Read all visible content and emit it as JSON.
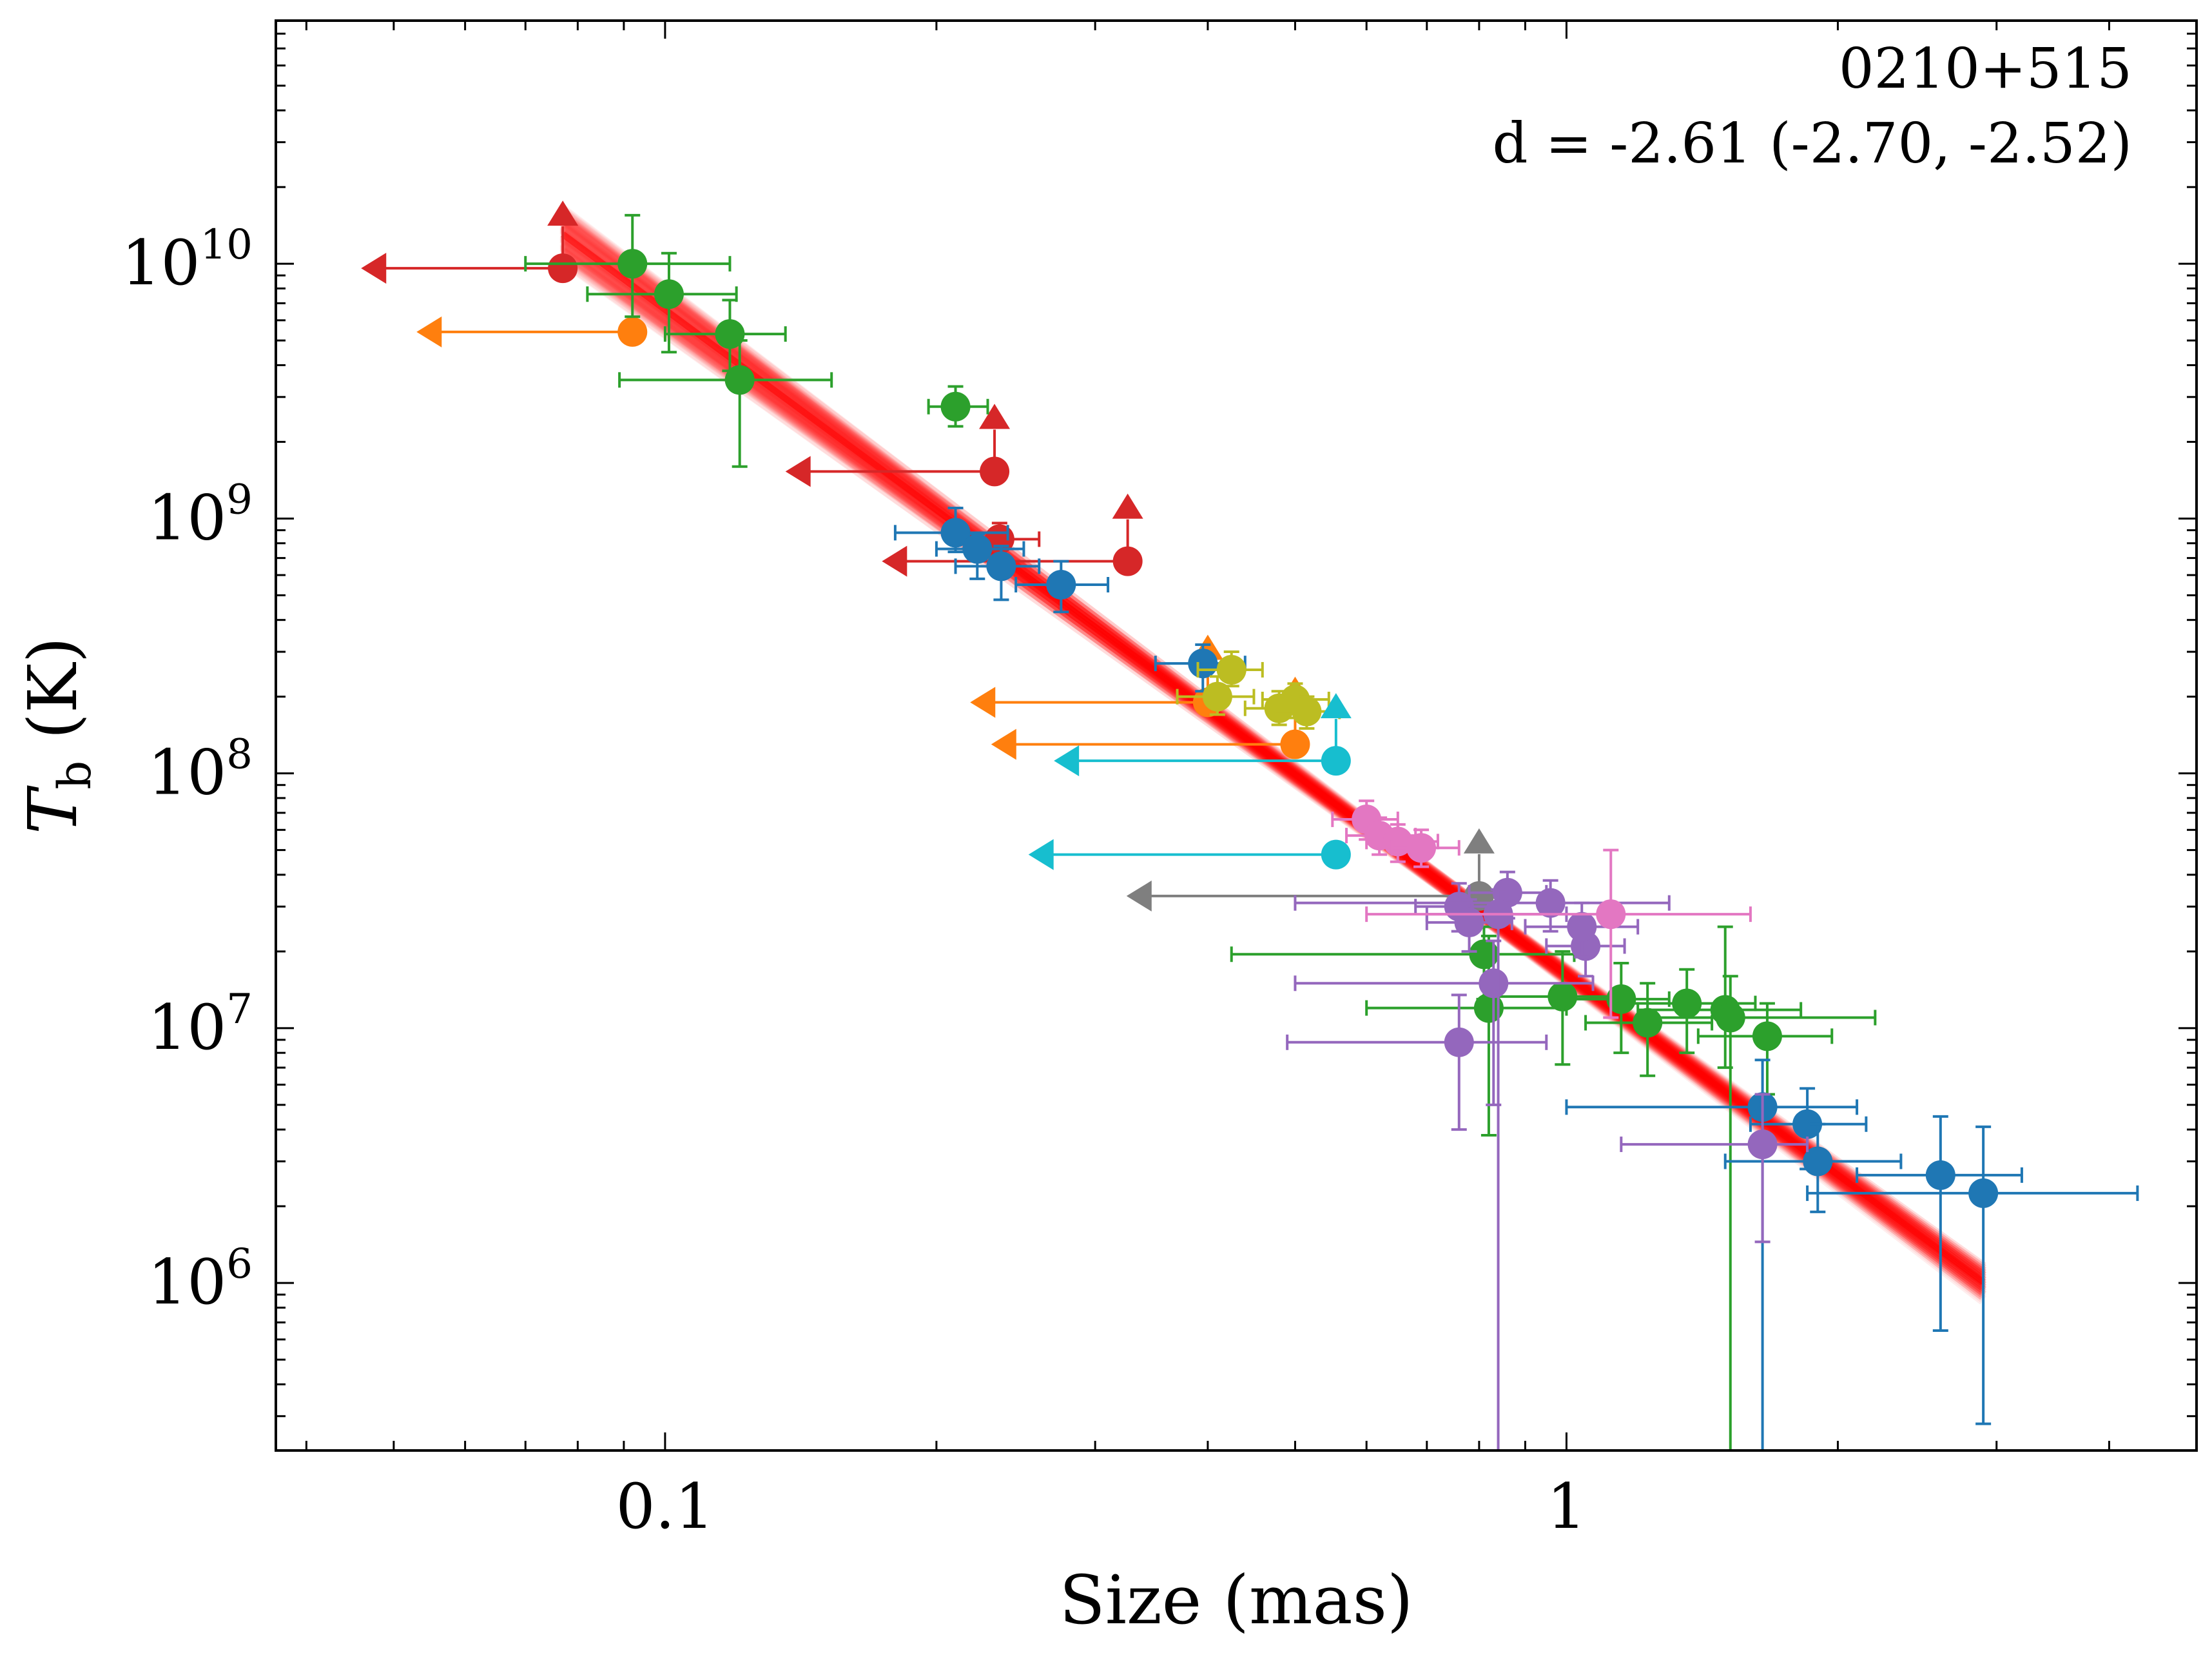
{
  "chart_data": {
    "type": "scatter",
    "xlabel": "Size (mas)",
    "ylabel": "T_b (K)",
    "xscale": "log",
    "yscale": "log",
    "xlim": [
      0.037,
      5.0
    ],
    "ylim": [
      220000,
      90000000000
    ],
    "x_ticks": [
      {
        "value": 0.1,
        "label": "0.1"
      },
      {
        "value": 1,
        "label": "1"
      }
    ],
    "y_ticks": [
      {
        "value": 1000000,
        "base": "10",
        "exp": "6"
      },
      {
        "value": 10000000,
        "base": "10",
        "exp": "7"
      },
      {
        "value": 100000000,
        "base": "10",
        "exp": "8"
      },
      {
        "value": 1000000000,
        "base": "10",
        "exp": "9"
      },
      {
        "value": 10000000000,
        "base": "10",
        "exp": "10"
      }
    ],
    "annotation": {
      "source": "0210+515",
      "fit": "d = -2.61 (-2.70, -2.52)"
    },
    "fit": {
      "slope": -2.61,
      "slope_low": -2.7,
      "slope_high": -2.52,
      "x0": 0.78,
      "y0": 31000000,
      "x_range": [
        0.077,
        2.9
      ],
      "color": "#ff0000"
    },
    "colors": {
      "red": "#d62728",
      "orange": "#ff7f0e",
      "green": "#2ca02c",
      "blue": "#1f77b4",
      "olive": "#bcbd22",
      "cyan": "#17becf",
      "gray": "#7f7f7f",
      "purple": "#9467bd",
      "pink": "#e377c2"
    },
    "series": [
      {
        "name": "red",
        "color": "#d62728",
        "points": [
          {
            "x": 0.077,
            "y": 9600000000,
            "xlo": 0.046,
            "upper_x": true,
            "lower_y": true
          },
          {
            "x": 0.232,
            "y": 1530000000,
            "xlo": 0.136,
            "upper_x": true,
            "lower_y": true
          },
          {
            "x": 0.326,
            "y": 680000000,
            "xlo": 0.174,
            "upper_x": true,
            "lower_y": true
          },
          {
            "x": 0.235,
            "y": 830000000,
            "xlo": 0.21,
            "xhi": 0.26,
            "ylo": 720000000,
            "yhi": 960000000
          }
        ]
      },
      {
        "name": "orange",
        "color": "#ff7f0e",
        "points": [
          {
            "x": 0.092,
            "y": 5400000000,
            "xlo": 0.053,
            "upper_x": true
          },
          {
            "x": 0.4,
            "y": 190000000,
            "xlo": 0.218,
            "upper_x": true,
            "lower_y": true
          },
          {
            "x": 0.5,
            "y": 130000000,
            "xlo": 0.23,
            "upper_x": true,
            "lower_y": true
          }
        ]
      },
      {
        "name": "green",
        "color": "#2ca02c",
        "points": [
          {
            "x": 0.092,
            "y": 10000000000,
            "xlo": 0.07,
            "xhi": 0.118,
            "ylo": 6200000000,
            "yhi": 15500000000
          },
          {
            "x": 0.101,
            "y": 7600000000,
            "xlo": 0.082,
            "xhi": 0.12,
            "ylo": 4500000000,
            "yhi": 11000000000
          },
          {
            "x": 0.118,
            "y": 5300000000,
            "xlo": 0.1,
            "xhi": 0.136,
            "ylo": 3800000000,
            "yhi": 7200000000
          },
          {
            "x": 0.121,
            "y": 3500000000,
            "xlo": 0.089,
            "xhi": 0.153,
            "ylo": 1600000000,
            "yhi": 5000000000
          },
          {
            "x": 0.21,
            "y": 2750000000,
            "xlo": 0.196,
            "xhi": 0.228,
            "ylo": 2300000000,
            "yhi": 3300000000
          },
          {
            "x": 0.81,
            "y": 19500000,
            "xlo": 0.425,
            "xhi": 1.02,
            "ylo": 13000000,
            "yhi": 25000000
          },
          {
            "x": 0.82,
            "y": 12000000,
            "xlo": 0.6,
            "xhi": 1.0,
            "ylo": 3800000,
            "yhi": 23000000
          },
          {
            "x": 0.99,
            "y": 13300000,
            "xlo": 0.84,
            "xhi": 1.16,
            "ylo": 7200000,
            "yhi": 20000000
          },
          {
            "x": 1.15,
            "y": 13000000,
            "xlo": 1.0,
            "xhi": 1.3,
            "ylo": 8000000,
            "yhi": 18000000
          },
          {
            "x": 1.23,
            "y": 10500000,
            "xlo": 1.05,
            "xhi": 1.45,
            "ylo": 6500000,
            "yhi": 15000000
          },
          {
            "x": 1.36,
            "y": 12500000,
            "xlo": 1.15,
            "xhi": 1.62,
            "ylo": 8000000,
            "yhi": 17000000
          },
          {
            "x": 1.5,
            "y": 11800000,
            "xlo": 1.2,
            "xhi": 1.82,
            "ylo": 7000000,
            "yhi": 25000000
          },
          {
            "x": 1.52,
            "y": 11000000,
            "xlo": 1.25,
            "xhi": 2.2,
            "ylo": 200000,
            "yhi": 16000000
          },
          {
            "x": 1.67,
            "y": 9300000,
            "xlo": 1.4,
            "xhi": 1.97,
            "ylo": 5500000,
            "yhi": 12500000
          }
        ]
      },
      {
        "name": "blue",
        "color": "#1f77b4",
        "points": [
          {
            "x": 0.21,
            "y": 880000000,
            "xlo": 0.18,
            "xhi": 0.24,
            "ylo": 740000000,
            "yhi": 1100000000
          },
          {
            "x": 0.222,
            "y": 760000000,
            "xlo": 0.2,
            "xhi": 0.25,
            "ylo": 580000000,
            "yhi": 870000000
          },
          {
            "x": 0.236,
            "y": 650000000,
            "xlo": 0.21,
            "xhi": 0.26,
            "ylo": 480000000,
            "yhi": 780000000
          },
          {
            "x": 0.275,
            "y": 550000000,
            "xlo": 0.245,
            "xhi": 0.31,
            "ylo": 430000000,
            "yhi": 680000000
          },
          {
            "x": 0.395,
            "y": 270000000,
            "xlo": 0.35,
            "xhi": 0.44,
            "ylo": 210000000,
            "yhi": 320000000
          },
          {
            "x": 1.65,
            "y": 4900000,
            "xlo": 1.0,
            "xhi": 2.1,
            "ylo": 200000,
            "yhi": 7500000
          },
          {
            "x": 1.85,
            "y": 4200000,
            "xlo": 1.6,
            "xhi": 2.15,
            "ylo": 2800000,
            "yhi": 5800000
          },
          {
            "x": 1.9,
            "y": 3000000,
            "xlo": 1.5,
            "xhi": 2.35,
            "ylo": 1900000,
            "yhi": 4200000
          },
          {
            "x": 2.6,
            "y": 2650000,
            "xlo": 2.1,
            "xhi": 3.2,
            "ylo": 650000,
            "yhi": 4500000
          },
          {
            "x": 2.9,
            "y": 2250000,
            "xlo": 1.85,
            "xhi": 4.3,
            "ylo": 280000,
            "yhi": 4100000
          }
        ]
      },
      {
        "name": "olive",
        "color": "#bcbd22",
        "points": [
          {
            "x": 0.41,
            "y": 200000000,
            "xlo": 0.37,
            "xhi": 0.45,
            "ylo": 170000000,
            "yhi": 240000000
          },
          {
            "x": 0.425,
            "y": 255000000,
            "xlo": 0.39,
            "xhi": 0.46,
            "ylo": 220000000,
            "yhi": 300000000
          },
          {
            "x": 0.48,
            "y": 180000000,
            "xlo": 0.44,
            "xhi": 0.52,
            "ylo": 155000000,
            "yhi": 210000000
          },
          {
            "x": 0.5,
            "y": 195000000,
            "xlo": 0.46,
            "xhi": 0.545,
            "ylo": 165000000,
            "yhi": 225000000
          },
          {
            "x": 0.515,
            "y": 175000000,
            "xlo": 0.475,
            "xhi": 0.56,
            "ylo": 150000000,
            "yhi": 200000000
          }
        ]
      },
      {
        "name": "cyan",
        "color": "#17becf",
        "points": [
          {
            "x": 0.555,
            "y": 112000000,
            "xlo": 0.27,
            "upper_x": true,
            "lower_y": true
          },
          {
            "x": 0.555,
            "y": 48000000,
            "xlo": 0.253,
            "upper_x": true
          }
        ]
      },
      {
        "name": "gray",
        "color": "#7f7f7f",
        "points": [
          {
            "x": 0.8,
            "y": 33000000,
            "xlo": 0.325,
            "upper_x": true,
            "lower_y": true
          }
        ]
      },
      {
        "name": "purple",
        "color": "#9467bd",
        "points": [
          {
            "x": 0.76,
            "y": 30000000,
            "xlo": 0.68,
            "xhi": 0.85,
            "ylo": 24000000,
            "yhi": 37000000
          },
          {
            "x": 0.78,
            "y": 26000000,
            "xlo": 0.7,
            "xhi": 0.87,
            "ylo": 20000000,
            "yhi": 32000000
          },
          {
            "x": 0.86,
            "y": 34000000,
            "xlo": 0.78,
            "xhi": 0.95,
            "ylo": 27000000,
            "yhi": 41000000
          },
          {
            "x": 0.96,
            "y": 31000000,
            "xlo": 0.5,
            "xhi": 1.3,
            "ylo": 24000000,
            "yhi": 38000000
          },
          {
            "x": 1.05,
            "y": 21000000,
            "xlo": 0.95,
            "xhi": 1.16,
            "ylo": 16000000,
            "yhi": 26000000
          },
          {
            "x": 1.04,
            "y": 25000000,
            "xlo": 0.9,
            "xhi": 1.2,
            "ylo": 19000000,
            "yhi": 31000000
          },
          {
            "x": 0.83,
            "y": 15000000,
            "xlo": 0.5,
            "xhi": 1.07,
            "ylo": 5000000,
            "yhi": 22000000
          },
          {
            "x": 0.84,
            "y": 28000000,
            "xlo": 0.7,
            "xhi": 1.0,
            "ylo": 200000,
            "yhi": 35000000
          },
          {
            "x": 0.76,
            "y": 8800000,
            "xlo": 0.49,
            "xhi": 0.95,
            "ylo": 4000000,
            "yhi": 13500000
          },
          {
            "x": 1.65,
            "y": 3500000,
            "xlo": 1.15,
            "xhi": 1.85,
            "ylo": 1450000,
            "yhi": 5500000
          }
        ]
      },
      {
        "name": "pink",
        "color": "#e377c2",
        "points": [
          {
            "x": 0.6,
            "y": 66000000,
            "xlo": 0.55,
            "xhi": 0.65,
            "ylo": 55000000,
            "yhi": 78000000
          },
          {
            "x": 0.62,
            "y": 57000000,
            "xlo": 0.57,
            "xhi": 0.68,
            "ylo": 48000000,
            "yhi": 67000000
          },
          {
            "x": 0.65,
            "y": 54000000,
            "xlo": 0.6,
            "xhi": 0.72,
            "ylo": 45000000,
            "yhi": 63000000
          },
          {
            "x": 0.69,
            "y": 51000000,
            "xlo": 0.64,
            "xhi": 0.76,
            "ylo": 43000000,
            "yhi": 60000000
          },
          {
            "x": 1.12,
            "y": 28000000,
            "xlo": 0.6,
            "xhi": 1.6,
            "ylo": 11000000,
            "yhi": 50000000
          }
        ]
      }
    ]
  }
}
